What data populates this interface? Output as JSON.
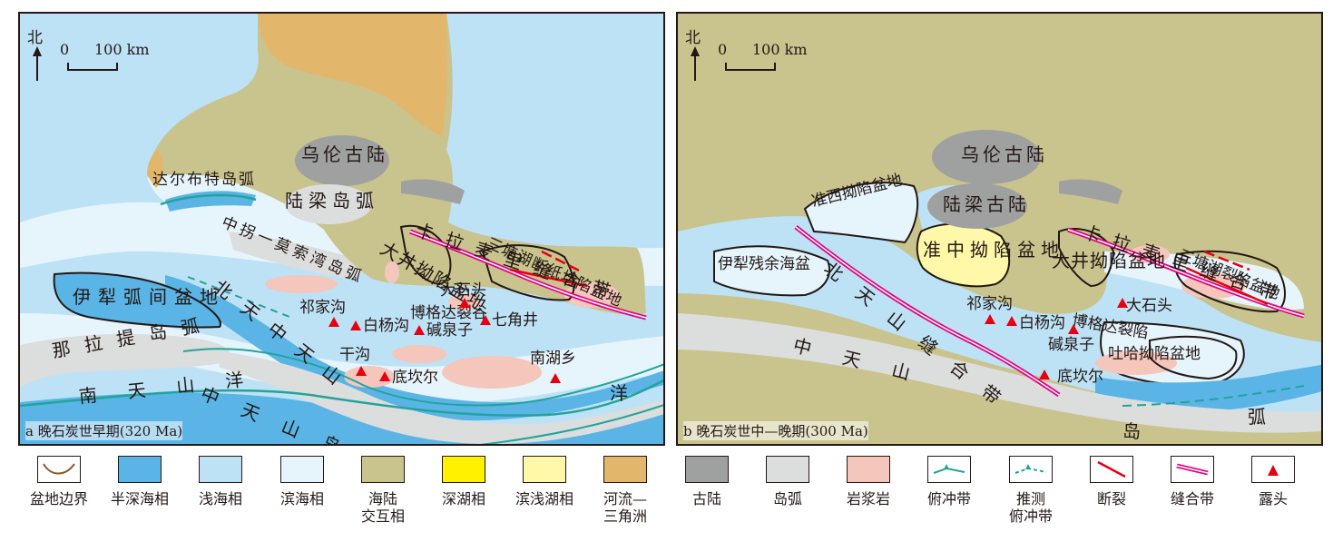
{
  "colors": {
    "semi_deep_sea": "#5ab4e5",
    "shallow_sea": "#bde2f6",
    "littoral": "#e6f4fc",
    "transition": "#c9c38e",
    "deep_lake": "#fff100",
    "shallow_lake": "#fff8a8",
    "delta": "#e3b76b",
    "old_land": "#9fa0a0",
    "island_arc": "#dcdddd",
    "magmatic": "#f4c6bc",
    "subduction": "#22a49b",
    "fault": "#e60012",
    "suture": "#e4007f",
    "outcrop": "#e60012",
    "basin_boundary": "#231815"
  },
  "panel_a": {
    "north": "北",
    "scale_zero": "0",
    "scale_label": "100 km",
    "caption": "a 晚石炭世早期(320 Ma)",
    "labels": {
      "wulun": "乌伦古陆",
      "luliang": "陆梁岛弧",
      "darbut": "达尔布特岛弧",
      "zhongguai": "中拐一莫索湾岛弧",
      "yili": "伊犁弧间盆地",
      "nalati": "那拉提岛弧",
      "kalamaili": "卡拉麦里缝合带",
      "dajing": "大井拗陷盆地",
      "santanghu": "三塘湖断纸坊陷盆地",
      "dashitou": "大石头",
      "bogda": "博格达裂谷",
      "beitian": "北天中天山",
      "southocean": "南天山洋",
      "zhongtian": "中天山岛弧",
      "qijiagou": "祁家沟",
      "baiyanggou": "白杨沟",
      "jianquanzi": "碱泉子",
      "qijiaojing": "七角井",
      "gangou": "干沟",
      "dikanr": "底坎尔",
      "nanhuxiang": "南湖乡"
    }
  },
  "panel_b": {
    "north": "北",
    "scale_zero": "0",
    "scale_label": "100 km",
    "caption": "b 晚石炭世中—晚期(300 Ma)",
    "labels": {
      "wulun": "乌伦古陆",
      "luliang": "陆梁古陆",
      "zhunxi": "准西拗陷盆地",
      "yili": "伊犁残余海盆",
      "zhunzhong": "准中拗陷盆地",
      "beitian_suture": "北天山缝合带",
      "kalamaili": "卡拉麦里缝合带",
      "dajing": "大井拗陷盆地",
      "santanghu": "三塘湖裂陷盆地",
      "dashitou": "大石头",
      "bogda": "博格达裂陷",
      "tuha": "吐哈拗陷盆地",
      "qijiagou": "祁家沟",
      "baiyanggou": "白杨沟",
      "jianquanzi": "碱泉子",
      "dikanr": "底坎尔",
      "zhongtian": "中天山",
      "island": "岛",
      "arc": "弧"
    }
  },
  "legend": [
    {
      "label": "盆地边界",
      "icon": "basin-boundary-icon"
    },
    {
      "label": "半深海相",
      "icon": "semi-deep-sea-swatch"
    },
    {
      "label": "浅海相",
      "icon": "shallow-sea-swatch"
    },
    {
      "label": "滨海相",
      "icon": "littoral-swatch"
    },
    {
      "label": "海陆\n交互相",
      "icon": "transition-swatch"
    },
    {
      "label": "深湖相",
      "icon": "deep-lake-swatch"
    },
    {
      "label": "滨浅湖相",
      "icon": "shallow-lake-swatch"
    },
    {
      "label": "河流—\n三角洲",
      "icon": "delta-swatch"
    },
    {
      "label": "古陆",
      "icon": "old-land-swatch"
    },
    {
      "label": "岛弧",
      "icon": "island-arc-swatch"
    },
    {
      "label": "岩浆岩",
      "icon": "magmatic-swatch"
    },
    {
      "label": "俯冲带",
      "icon": "subduction-icon"
    },
    {
      "label": "推测\n俯冲带",
      "icon": "inferred-subduction-icon"
    },
    {
      "label": "断裂",
      "icon": "fault-icon"
    },
    {
      "label": "缝合带",
      "icon": "suture-icon"
    },
    {
      "label": "露头",
      "icon": "outcrop-icon"
    }
  ]
}
